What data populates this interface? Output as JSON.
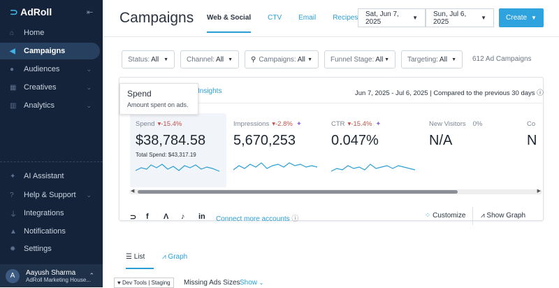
{
  "sidebar": {
    "brand": "AdRoll",
    "items": [
      {
        "label": "Home"
      },
      {
        "label": "Campaigns"
      },
      {
        "label": "Audiences"
      },
      {
        "label": "Creatives"
      },
      {
        "label": "Analytics"
      }
    ],
    "bottom": [
      {
        "label": "AI Assistant"
      },
      {
        "label": "Help & Support"
      },
      {
        "label": "Integrations"
      },
      {
        "label": "Notifications"
      },
      {
        "label": "Settings"
      }
    ],
    "user": {
      "initial": "A",
      "name": "Aayush Sharma",
      "org": "AdRoll Marketing House..."
    }
  },
  "header": {
    "title": "Campaigns",
    "tabs": [
      "Web & Social",
      "CTV",
      "Email",
      "Recipes"
    ],
    "start_date": "Sat, Jun 7, 2025",
    "end_date": "Sun, Jul 6, 2025",
    "create": "Create"
  },
  "filters": [
    {
      "label": "Status:",
      "value": "All"
    },
    {
      "label": "Channel:",
      "value": "All"
    },
    {
      "label": "Campaigns:",
      "value": "All"
    },
    {
      "label": "Funnel Stage:",
      "value": "All"
    },
    {
      "label": "Targeting:",
      "value": "All"
    }
  ],
  "campaign_count": "612 Ad Campaigns",
  "card": {
    "insights": "Insights",
    "range": "Jun 7, 2025 - Jul 6, 2025 | Compared to the previous 30 days",
    "tooltip": {
      "title": "Spend",
      "text": "Amount spent on ads."
    },
    "metrics": [
      {
        "label": "Spend",
        "delta": "-15.4%",
        "value": "$38,784.58",
        "sub": "Total Spend: $43,317.19"
      },
      {
        "label": "Impressions",
        "delta": "-2.8%",
        "value": "5,670,253"
      },
      {
        "label": "CTR",
        "delta": "-15.4%",
        "value": "0.047%"
      },
      {
        "label": "New Visitors",
        "delta": "0%",
        "value": "N/A"
      },
      {
        "label": "Co",
        "value": "N"
      }
    ],
    "connect": "Connect more accounts",
    "customize": "Customize",
    "show_graph": "Show Graph"
  },
  "view_tabs": {
    "list": "List",
    "graph": "Graph"
  },
  "dev": "Dev Tools | Staging",
  "missing": "Missing Ads Sizes",
  "show": "Show"
}
